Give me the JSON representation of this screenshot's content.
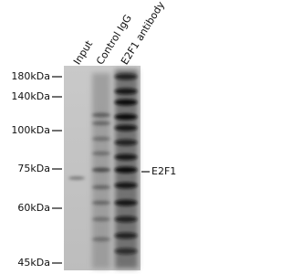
{
  "lanes": [
    "Input",
    "Control IgG",
    "E2F1 antibody"
  ],
  "markers": [
    "180kDa",
    "140kDa",
    "100kDa",
    "75kDa",
    "60kDa",
    "45kDa"
  ],
  "target": "E2F1"
}
